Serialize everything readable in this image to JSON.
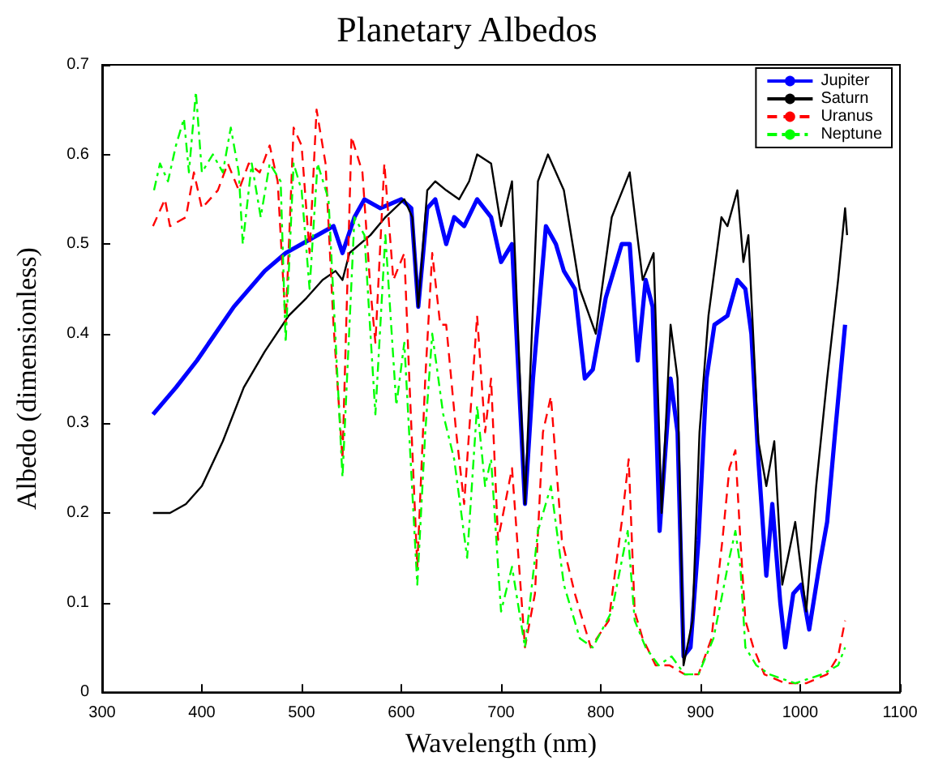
{
  "chart_data": {
    "type": "line",
    "title": "Planetary Albedos",
    "xlabel": "Wavelength (nm)",
    "ylabel": "Albedo (dimensionless)",
    "xlim": [
      300,
      1100
    ],
    "xticks": [
      300,
      400,
      500,
      600,
      700,
      800,
      900,
      1000,
      1100
    ],
    "ylim": [
      0,
      0.7
    ],
    "yticks": [
      0,
      0.1,
      0.2,
      0.3,
      0.4,
      0.5,
      0.6,
      0.7
    ],
    "legend": "top right",
    "marker": "none",
    "grid": false,
    "series": [
      {
        "name": "Jupiter",
        "color": "#0000ff",
        "line_style": "solid",
        "x": [
          351,
          374,
          395,
          432,
          463,
          484,
          516,
          532,
          541,
          553,
          563,
          579,
          600,
          610,
          617,
          626,
          634,
          645,
          653,
          663,
          676,
          690,
          700,
          711,
          724,
          732,
          745,
          755,
          763,
          774,
          784,
          792,
          805,
          821,
          829,
          837,
          845,
          852,
          859,
          870,
          877,
          883,
          890,
          898,
          906,
          914,
          927,
          937,
          945,
          951,
          958,
          966,
          972,
          980,
          985,
          993,
          1001,
          1009,
          1019,
          1027,
          1035,
          1045
        ],
        "values": [
          0.31,
          0.34,
          0.37,
          0.43,
          0.47,
          0.49,
          0.51,
          0.52,
          0.49,
          0.53,
          0.55,
          0.54,
          0.55,
          0.54,
          0.43,
          0.54,
          0.55,
          0.5,
          0.53,
          0.52,
          0.55,
          0.53,
          0.48,
          0.5,
          0.21,
          0.35,
          0.52,
          0.5,
          0.47,
          0.45,
          0.35,
          0.36,
          0.44,
          0.5,
          0.5,
          0.37,
          0.46,
          0.43,
          0.18,
          0.35,
          0.29,
          0.04,
          0.05,
          0.17,
          0.35,
          0.41,
          0.42,
          0.46,
          0.45,
          0.4,
          0.26,
          0.13,
          0.21,
          0.1,
          0.05,
          0.11,
          0.12,
          0.07,
          0.14,
          0.19,
          0.29,
          0.41
        ]
      },
      {
        "name": "Saturn",
        "color": "#000000",
        "line_style": "solid",
        "x": [
          351,
          368,
          384,
          400,
          421,
          442,
          463,
          487,
          505,
          521,
          534,
          541,
          548,
          569,
          584,
          603,
          611,
          617,
          626,
          634,
          645,
          658,
          668,
          676,
          690,
          700,
          711,
          724,
          737,
          747,
          763,
          779,
          795,
          811,
          829,
          842,
          853,
          861,
          870,
          877,
          883,
          892,
          899,
          908,
          921,
          927,
          937,
          943,
          948,
          958,
          966,
          974,
          982,
          995,
          1006,
          1016,
          1027,
          1038,
          1045,
          1047
        ],
        "values": [
          0.2,
          0.2,
          0.21,
          0.23,
          0.28,
          0.34,
          0.38,
          0.42,
          0.44,
          0.46,
          0.47,
          0.46,
          0.49,
          0.51,
          0.53,
          0.55,
          0.53,
          0.43,
          0.56,
          0.57,
          0.56,
          0.55,
          0.57,
          0.6,
          0.59,
          0.52,
          0.57,
          0.21,
          0.57,
          0.6,
          0.56,
          0.45,
          0.4,
          0.53,
          0.58,
          0.46,
          0.49,
          0.2,
          0.41,
          0.35,
          0.03,
          0.08,
          0.29,
          0.42,
          0.53,
          0.52,
          0.56,
          0.48,
          0.51,
          0.28,
          0.23,
          0.28,
          0.12,
          0.19,
          0.09,
          0.23,
          0.35,
          0.46,
          0.54,
          0.51
        ]
      },
      {
        "name": "Uranus",
        "color": "#ff0000",
        "line_style": "dashed",
        "x": [
          351,
          363,
          368,
          384,
          392,
          400,
          416,
          426,
          437,
          447,
          458,
          468,
          476,
          484,
          492,
          500,
          508,
          515,
          524,
          532,
          541,
          550,
          561,
          569,
          574,
          583,
          592,
          603,
          608,
          616,
          624,
          631,
          639,
          645,
          655,
          663,
          676,
          684,
          690,
          697,
          711,
          724,
          734,
          742,
          750,
          761,
          774,
          790,
          808,
          821,
          828,
          834,
          842,
          855,
          869,
          884,
          898,
          911,
          922,
          929,
          935,
          940,
          945,
          953,
          964,
          985,
          1006,
          1027,
          1038,
          1045
        ],
        "values": [
          0.52,
          0.55,
          0.52,
          0.53,
          0.58,
          0.54,
          0.56,
          0.59,
          0.56,
          0.59,
          0.58,
          0.61,
          0.57,
          0.41,
          0.63,
          0.61,
          0.49,
          0.65,
          0.59,
          0.41,
          0.26,
          0.62,
          0.58,
          0.45,
          0.39,
          0.59,
          0.46,
          0.49,
          0.35,
          0.14,
          0.35,
          0.49,
          0.41,
          0.41,
          0.29,
          0.21,
          0.42,
          0.29,
          0.35,
          0.17,
          0.25,
          0.05,
          0.11,
          0.29,
          0.33,
          0.17,
          0.11,
          0.05,
          0.08,
          0.19,
          0.26,
          0.09,
          0.06,
          0.03,
          0.03,
          0.02,
          0.02,
          0.06,
          0.17,
          0.25,
          0.27,
          0.17,
          0.08,
          0.05,
          0.02,
          0.01,
          0.01,
          0.02,
          0.04,
          0.08
        ]
      },
      {
        "name": "Neptune",
        "color": "#00ff00",
        "line_style": "dotted",
        "x": [
          352,
          358,
          366,
          374,
          382,
          387,
          394,
          400,
          411,
          421,
          429,
          437,
          441,
          450,
          459,
          468,
          479,
          484,
          492,
          500,
          508,
          516,
          527,
          541,
          553,
          563,
          574,
          584,
          595,
          603,
          616,
          624,
          631,
          642,
          653,
          666,
          676,
          684,
          690,
          700,
          711,
          724,
          737,
          750,
          763,
          779,
          792,
          811,
          827,
          834,
          845,
          858,
          871,
          884,
          898,
          913,
          922,
          929,
          935,
          940,
          945,
          956,
          969,
          995,
          1022,
          1038,
          1045
        ],
        "values": [
          0.56,
          0.59,
          0.57,
          0.61,
          0.64,
          0.58,
          0.67,
          0.58,
          0.6,
          0.58,
          0.63,
          0.58,
          0.5,
          0.59,
          0.53,
          0.59,
          0.57,
          0.39,
          0.59,
          0.56,
          0.45,
          0.59,
          0.55,
          0.24,
          0.53,
          0.51,
          0.31,
          0.51,
          0.32,
          0.39,
          0.12,
          0.29,
          0.4,
          0.31,
          0.26,
          0.15,
          0.32,
          0.23,
          0.26,
          0.09,
          0.14,
          0.05,
          0.18,
          0.23,
          0.12,
          0.06,
          0.05,
          0.09,
          0.18,
          0.08,
          0.05,
          0.03,
          0.04,
          0.02,
          0.02,
          0.06,
          0.11,
          0.15,
          0.18,
          0.14,
          0.05,
          0.03,
          0.02,
          0.01,
          0.02,
          0.03,
          0.05
        ]
      }
    ]
  }
}
